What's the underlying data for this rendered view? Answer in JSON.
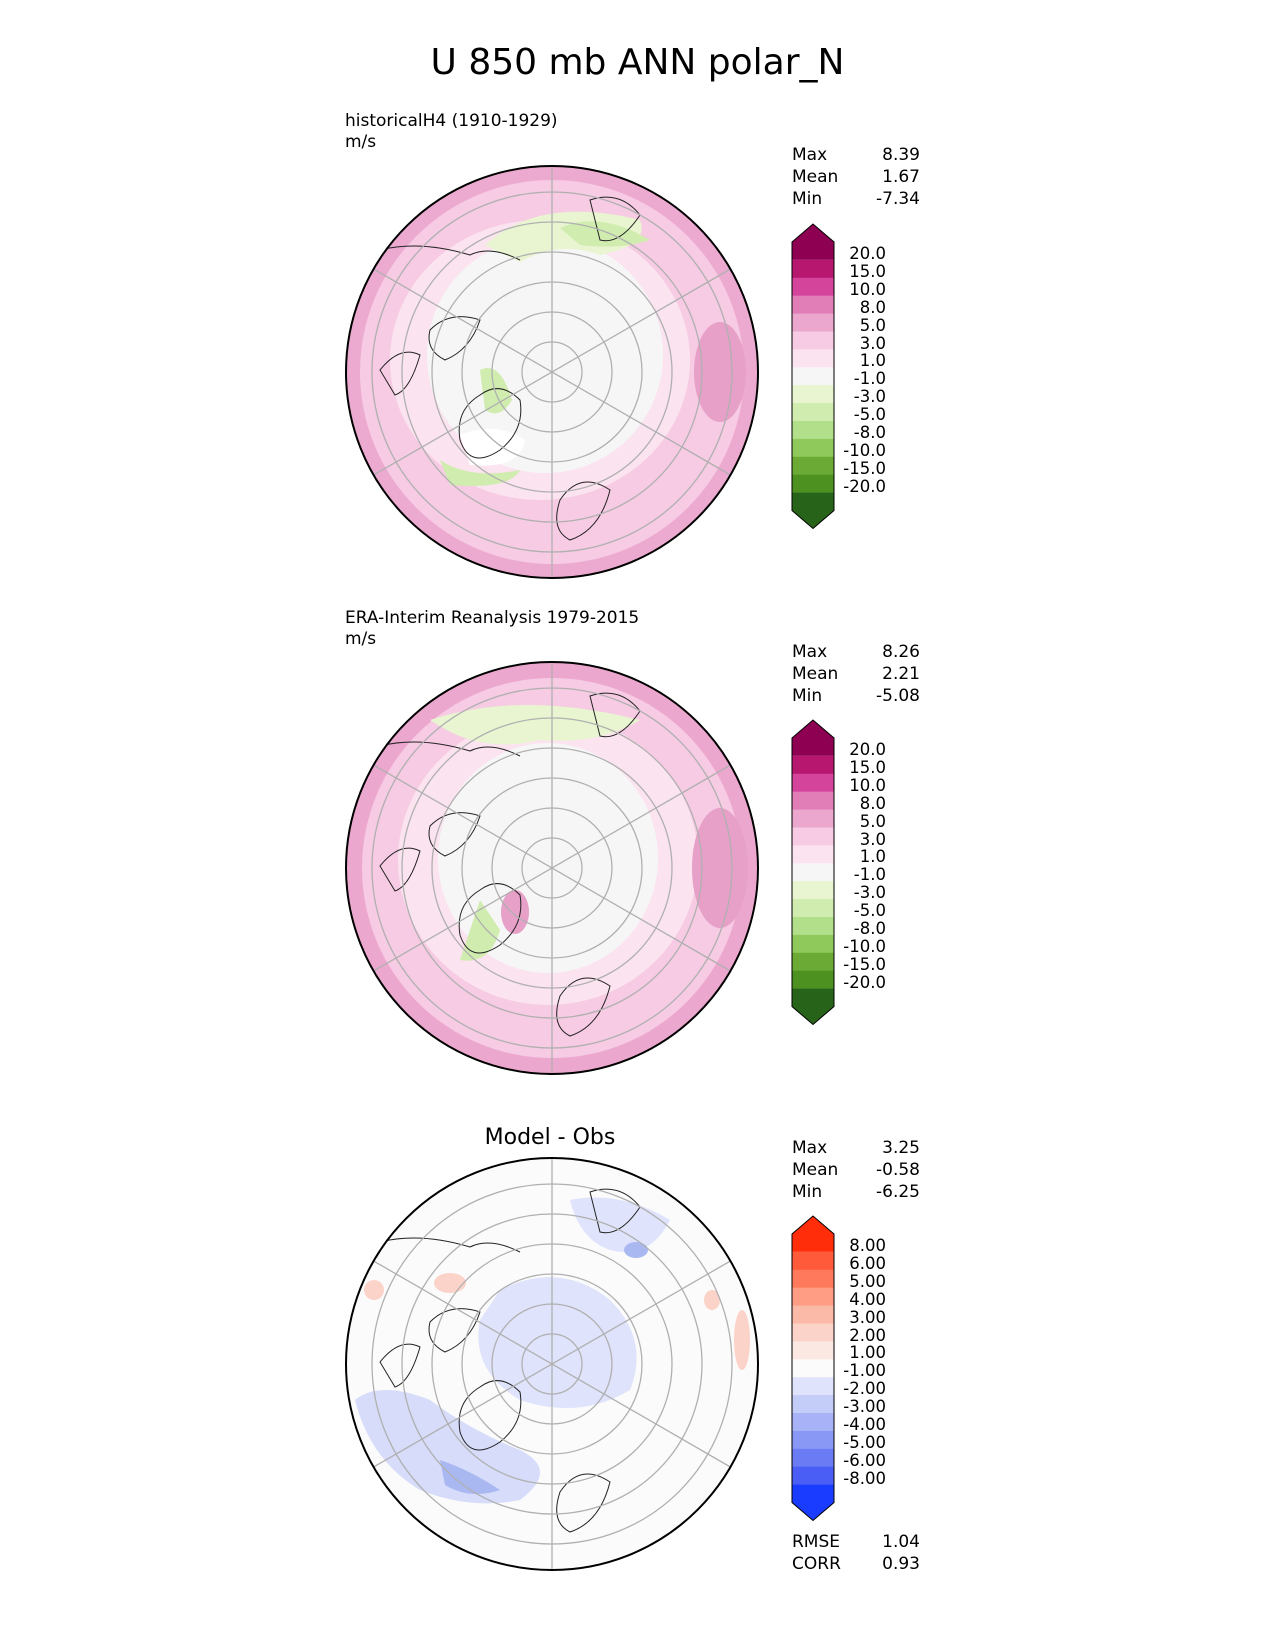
{
  "figure_title": "U 850 mb ANN polar_N",
  "panels": [
    {
      "id": "test",
      "title_line1": "historicalH4 (1910-1929)",
      "title_line2": "m/s",
      "stats": {
        "max_label": "Max",
        "max": "8.39",
        "mean_label": "Mean",
        "mean": "1.67",
        "min_label": "Min",
        "min": "-7.34"
      },
      "colorbar": {
        "levels": [
          "20.0",
          "15.0",
          "10.0",
          "8.0",
          "5.0",
          "3.0",
          "1.0",
          "-1.0",
          "-3.0",
          "-5.0",
          "-8.0",
          "-10.0",
          "-15.0",
          "-20.0"
        ],
        "colors": [
          "#8e0152",
          "#b8176f",
          "#d4449a",
          "#e17eb8",
          "#eca7cf",
          "#f6cbe3",
          "#fbe3ef",
          "#f6f6f6",
          "#e8f5d0",
          "#d0ecaf",
          "#b2df8a",
          "#8fc95b",
          "#6aaa35",
          "#4d9221",
          "#276419"
        ]
      }
    },
    {
      "id": "reference",
      "title_line1": "ERA-Interim Reanalysis 1979-2015",
      "title_line2": "m/s",
      "stats": {
        "max_label": "Max",
        "max": "8.26",
        "mean_label": "Mean",
        "mean": "2.21",
        "min_label": "Min",
        "min": "-5.08"
      },
      "colorbar": {
        "levels": [
          "20.0",
          "15.0",
          "10.0",
          "8.0",
          "5.0",
          "3.0",
          "1.0",
          "-1.0",
          "-3.0",
          "-5.0",
          "-8.0",
          "-10.0",
          "-15.0",
          "-20.0"
        ],
        "colors": [
          "#8e0152",
          "#b8176f",
          "#d4449a",
          "#e17eb8",
          "#eca7cf",
          "#f6cbe3",
          "#fbe3ef",
          "#f6f6f6",
          "#e8f5d0",
          "#d0ecaf",
          "#b2df8a",
          "#8fc95b",
          "#6aaa35",
          "#4d9221",
          "#276419"
        ]
      }
    },
    {
      "id": "diff",
      "title": "Model - Obs",
      "stats": {
        "max_label": "Max",
        "max": "3.25",
        "mean_label": "Mean",
        "mean": "-0.58",
        "min_label": "Min",
        "min": "-6.25"
      },
      "colorbar": {
        "levels": [
          "8.00",
          "6.00",
          "5.00",
          "4.00",
          "3.00",
          "2.00",
          "1.00",
          "-1.00",
          "-2.00",
          "-3.00",
          "-4.00",
          "-5.00",
          "-6.00",
          "-8.00"
        ],
        "colors": [
          "#ff2d0a",
          "#ff5a3a",
          "#ff7a5c",
          "#ff9c84",
          "#fbb9a8",
          "#fcd3c8",
          "#fbe8e2",
          "#fbfbfb",
          "#dfe3fb",
          "#c4ccf8",
          "#a8b3f7",
          "#8a98f5",
          "#6b7bf3",
          "#4a5ef5",
          "#1a3cff"
        ]
      },
      "metrics": {
        "rmse_label": "RMSE",
        "rmse": "1.04",
        "corr_label": "CORR",
        "corr": "0.93"
      }
    }
  ],
  "map_fill": {
    "test": {
      "outer_ring": "#ecaad0",
      "mid_ring": "#f6cbe3",
      "inner": "#f6f6f6",
      "green_patch": "#d0ecaf"
    },
    "reference": {
      "outer_ring": "#eca7cf",
      "mid_ring": "#f6cbe3",
      "inner": "#f6f6f6",
      "green_patch": "#d8efbb"
    },
    "diff": {
      "base": "#fbfbfb",
      "blue_patch": "#d6dcf9",
      "deep_blue": "#aab8f2",
      "red_patch": "#fcd3c8"
    }
  }
}
